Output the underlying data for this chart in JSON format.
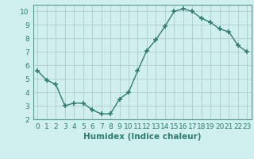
{
  "x": [
    0,
    1,
    2,
    3,
    4,
    5,
    6,
    7,
    8,
    9,
    10,
    11,
    12,
    13,
    14,
    15,
    16,
    17,
    18,
    19,
    20,
    21,
    22,
    23
  ],
  "y": [
    5.6,
    4.9,
    4.6,
    3.0,
    3.2,
    3.2,
    2.7,
    2.4,
    2.4,
    3.5,
    4.0,
    5.6,
    7.1,
    7.9,
    8.9,
    10.0,
    10.2,
    10.0,
    9.5,
    9.2,
    8.7,
    8.5,
    7.5,
    7.0
  ],
  "line_color": "#2e7d6e",
  "marker": "+",
  "bg_color": "#d0f0f0",
  "grid_color": "#b0cccc",
  "xlabel": "Humidex (Indice chaleur)",
  "ylim": [
    2,
    10.5
  ],
  "xlim": [
    -0.5,
    23.5
  ],
  "yticks": [
    2,
    3,
    4,
    5,
    6,
    7,
    8,
    9,
    10
  ],
  "xticks": [
    0,
    1,
    2,
    3,
    4,
    5,
    6,
    7,
    8,
    9,
    10,
    11,
    12,
    13,
    14,
    15,
    16,
    17,
    18,
    19,
    20,
    21,
    22,
    23
  ],
  "tick_color": "#2e7d6e",
  "label_color": "#2e7d6e",
  "axis_color": "#5a9a8a",
  "tick_fontsize": 6.5,
  "xlabel_fontsize": 7.5
}
